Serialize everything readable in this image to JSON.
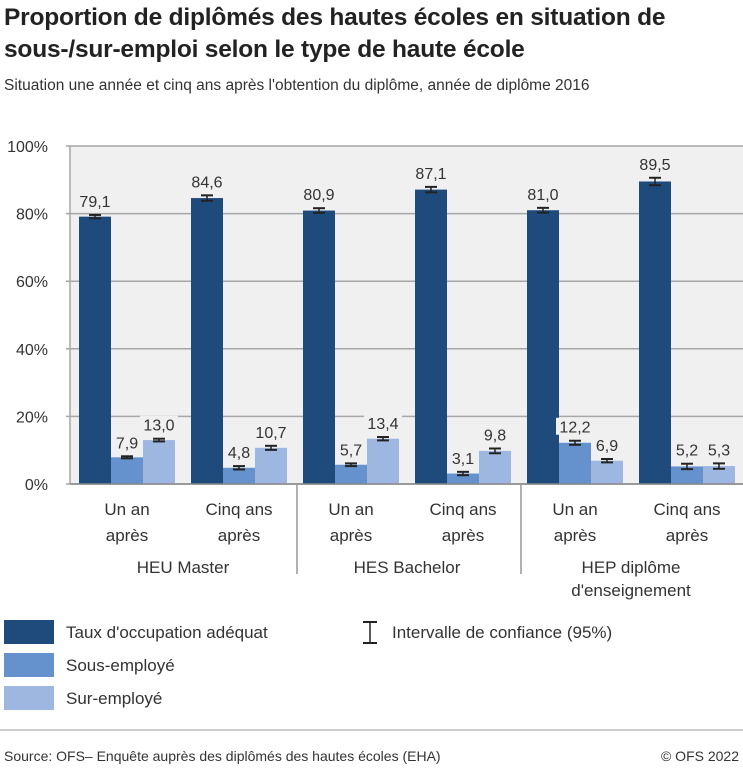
{
  "title": "Proportion de diplômés des hautes écoles en situation de sous-/sur-emploi selon le type de haute école",
  "subtitle": "Situation une année et cinq ans après l'obtention du diplôme, année de diplôme 2016",
  "source": "Source: OFS– Enquête auprès des diplômés des hautes écoles (EHA)",
  "copyright": "© OFS 2022",
  "chart_data": {
    "type": "bar",
    "ylim": [
      0,
      100
    ],
    "yticks": [
      "0%",
      "20%",
      "40%",
      "60%",
      "80%",
      "100%"
    ],
    "ytick_values": [
      0,
      20,
      40,
      60,
      80,
      100
    ],
    "grid": true,
    "groups": [
      {
        "label": "HEU Master",
        "categories": [
          "Un an après",
          "Cinq ans après"
        ]
      },
      {
        "label": "HES Bachelor",
        "categories": [
          "Un an après",
          "Cinq ans après"
        ]
      },
      {
        "label": "HEP diplôme d'enseignement",
        "categories": [
          "Un an après",
          "Cinq ans après"
        ]
      }
    ],
    "series": [
      {
        "name": "Taux d'occupation adéquat",
        "color": "#1f4a7c",
        "values": [
          79.1,
          84.6,
          80.9,
          87.1,
          81.0,
          89.5
        ],
        "labels": [
          "79,1",
          "84,6",
          "80,9",
          "87,1",
          "81,0",
          "89,5"
        ],
        "ci": [
          0.5,
          0.8,
          0.7,
          0.8,
          0.7,
          1.1
        ]
      },
      {
        "name": "Sous-employé",
        "color": "#6592cc",
        "values": [
          7.9,
          4.8,
          5.7,
          3.1,
          12.2,
          5.2
        ],
        "labels": [
          "7,9",
          "4,8",
          "5,7",
          "3,1",
          "12,2",
          "5,2"
        ],
        "ci": [
          0.3,
          0.5,
          0.4,
          0.5,
          0.6,
          0.8
        ]
      },
      {
        "name": "Sur-employé",
        "color": "#9db7e1",
        "values": [
          13.0,
          10.7,
          13.4,
          9.8,
          6.9,
          5.3
        ],
        "labels": [
          "13,0",
          "10,7",
          "13,4",
          "9,8",
          "6,9",
          "5,3"
        ],
        "ci": [
          0.4,
          0.6,
          0.5,
          0.7,
          0.5,
          0.8
        ]
      }
    ],
    "legend": {
      "placement": "bottom",
      "ci_label": "Intervalle de confiance (95%)"
    }
  }
}
